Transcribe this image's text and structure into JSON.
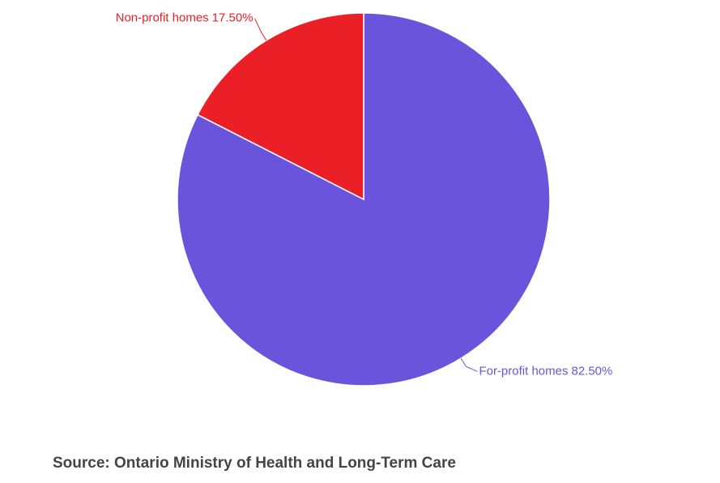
{
  "chart_data": {
    "type": "pie",
    "categories": [
      "For-profit homes",
      "Non-profit homes"
    ],
    "values": [
      82.5,
      17.5
    ],
    "value_labels": [
      "82.50%",
      "17.50%"
    ],
    "colors": [
      "#6b54dc",
      "#eb2027"
    ],
    "source": "Source: Ontario Ministry of Health and Long-Term Care"
  }
}
